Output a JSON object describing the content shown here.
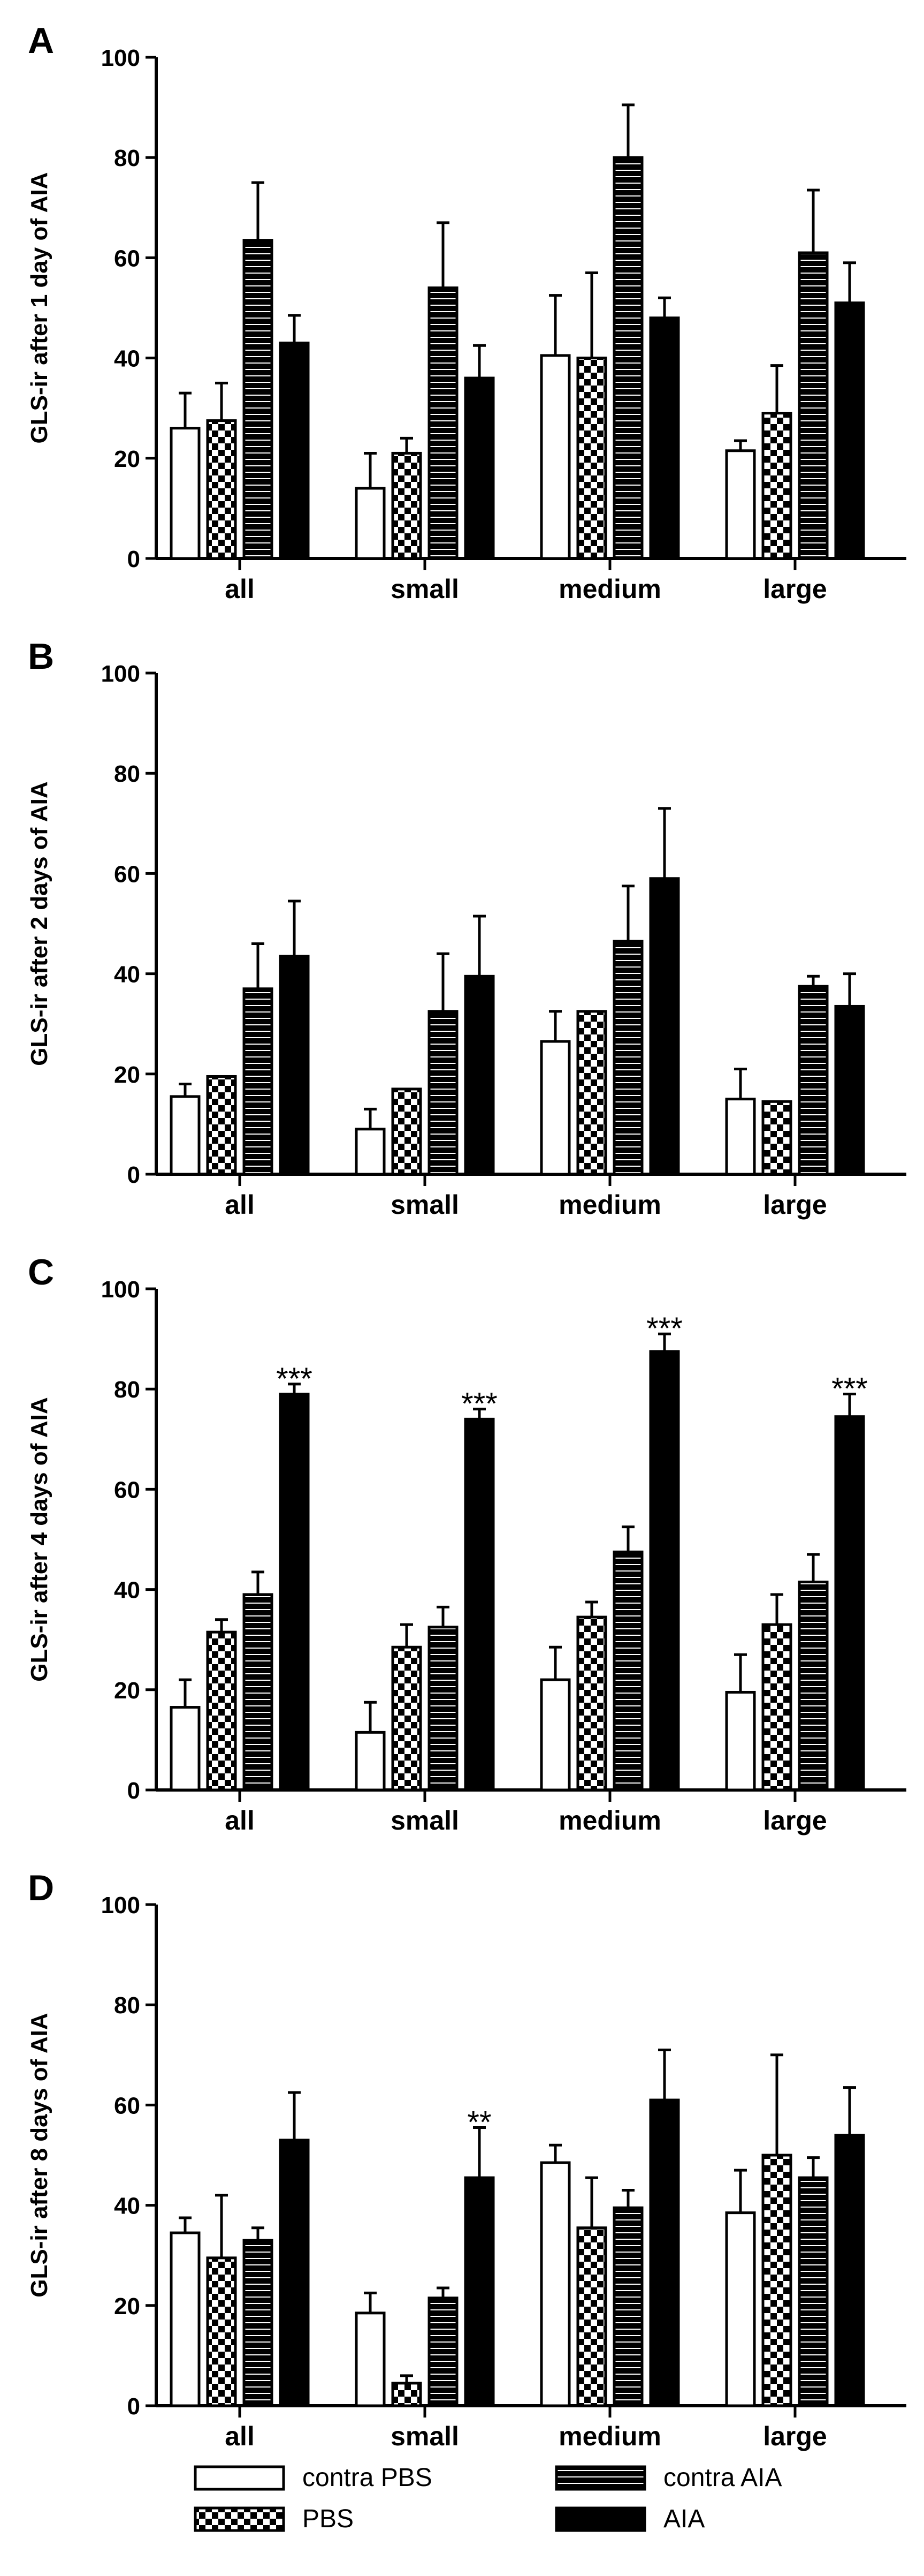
{
  "figure": {
    "legend": [
      {
        "key": "contra_pbs",
        "label": "contra PBS",
        "pattern": "open"
      },
      {
        "key": "pbs",
        "label": "PBS",
        "pattern": "checker"
      },
      {
        "key": "contra_aia",
        "label": "contra AIA",
        "pattern": "horizontal-stripes"
      },
      {
        "key": "aia",
        "label": "AIA",
        "pattern": "solid"
      }
    ],
    "colors": {
      "ink": "#000000",
      "background": "#ffffff"
    }
  },
  "chart_data": [
    {
      "type": "bar",
      "panel_label": "A",
      "ylabel": "GLS-ir after 1 day of AIA",
      "xlabel": "",
      "ylim": [
        0,
        100
      ],
      "yticks": [
        "0",
        "20",
        "40",
        "60",
        "80",
        "100"
      ],
      "categories": [
        "all",
        "small",
        "medium",
        "large"
      ],
      "series": [
        {
          "name": "contra PBS",
          "values": [
            26,
            14,
            40.5,
            21.5
          ],
          "errors": [
            7,
            7,
            12,
            2
          ]
        },
        {
          "name": "PBS",
          "values": [
            27.5,
            21,
            40,
            29
          ],
          "errors": [
            7.5,
            3,
            17,
            9.5
          ]
        },
        {
          "name": "contra AIA",
          "values": [
            63.5,
            54,
            80,
            61
          ],
          "errors": [
            11.5,
            13,
            10.5,
            12.5
          ]
        },
        {
          "name": "AIA",
          "values": [
            43,
            36,
            48,
            51
          ],
          "errors": [
            5.5,
            6.5,
            4,
            8
          ]
        }
      ],
      "annotations": [
        "",
        "",
        "",
        ""
      ]
    },
    {
      "type": "bar",
      "panel_label": "B",
      "ylabel": "GLS-ir after 2 days of AIA",
      "xlabel": "",
      "ylim": [
        0,
        100
      ],
      "yticks": [
        "0",
        "20",
        "40",
        "60",
        "80",
        "100"
      ],
      "categories": [
        "all",
        "small",
        "medium",
        "large"
      ],
      "series": [
        {
          "name": "contra PBS",
          "values": [
            15.5,
            9,
            26.5,
            15
          ],
          "errors": [
            2.5,
            4,
            6,
            6
          ]
        },
        {
          "name": "PBS",
          "values": [
            19.5,
            17,
            32.5,
            14.5
          ],
          "errors": [
            0,
            0,
            0,
            0
          ]
        },
        {
          "name": "contra AIA",
          "values": [
            37,
            32.5,
            46.5,
            37.5
          ],
          "errors": [
            9,
            11.5,
            11,
            2
          ]
        },
        {
          "name": "AIA",
          "values": [
            43.5,
            39.5,
            59,
            33.5
          ],
          "errors": [
            11,
            12,
            14,
            6.5
          ]
        }
      ],
      "annotations": [
        "",
        "",
        "",
        ""
      ]
    },
    {
      "type": "bar",
      "panel_label": "C",
      "ylabel": "GLS-ir after 4 days of AIA",
      "xlabel": "",
      "ylim": [
        0,
        100
      ],
      "yticks": [
        "0",
        "20",
        "40",
        "60",
        "80",
        "100"
      ],
      "categories": [
        "all",
        "small",
        "medium",
        "large"
      ],
      "series": [
        {
          "name": "contra PBS",
          "values": [
            16.5,
            11.5,
            22,
            19.5
          ],
          "errors": [
            5.5,
            6,
            6.5,
            7.5
          ]
        },
        {
          "name": "PBS",
          "values": [
            31.5,
            28.5,
            34.5,
            33
          ],
          "errors": [
            2.5,
            4.5,
            3,
            6
          ]
        },
        {
          "name": "contra AIA",
          "values": [
            39,
            32.5,
            47.5,
            41.5
          ],
          "errors": [
            4.5,
            4,
            5,
            5.5
          ]
        },
        {
          "name": "AIA",
          "values": [
            79,
            74,
            87.5,
            74.5
          ],
          "errors": [
            2,
            2,
            3.5,
            4.5
          ]
        }
      ],
      "annotations": [
        "***",
        "***",
        "***",
        "***"
      ]
    },
    {
      "type": "bar",
      "panel_label": "D",
      "ylabel": "GLS-ir after 8 days of AIA",
      "xlabel": "",
      "ylim": [
        0,
        100
      ],
      "yticks": [
        "0",
        "20",
        "40",
        "60",
        "80",
        "100"
      ],
      "categories": [
        "all",
        "small",
        "medium",
        "large"
      ],
      "series": [
        {
          "name": "contra PBS",
          "values": [
            34.5,
            18.5,
            48.5,
            38.5
          ],
          "errors": [
            3,
            4,
            3.5,
            8.5
          ]
        },
        {
          "name": "PBS",
          "values": [
            29.5,
            4.5,
            35.5,
            50
          ],
          "errors": [
            12.5,
            1.5,
            10,
            20
          ]
        },
        {
          "name": "contra AIA",
          "values": [
            33,
            21.5,
            39.5,
            45.5
          ],
          "errors": [
            2.5,
            2,
            3.5,
            4
          ]
        },
        {
          "name": "AIA",
          "values": [
            53,
            45.5,
            61,
            54
          ],
          "errors": [
            9.5,
            10,
            10,
            9.5
          ]
        }
      ],
      "annotations": [
        "",
        "**",
        "",
        ""
      ]
    }
  ]
}
